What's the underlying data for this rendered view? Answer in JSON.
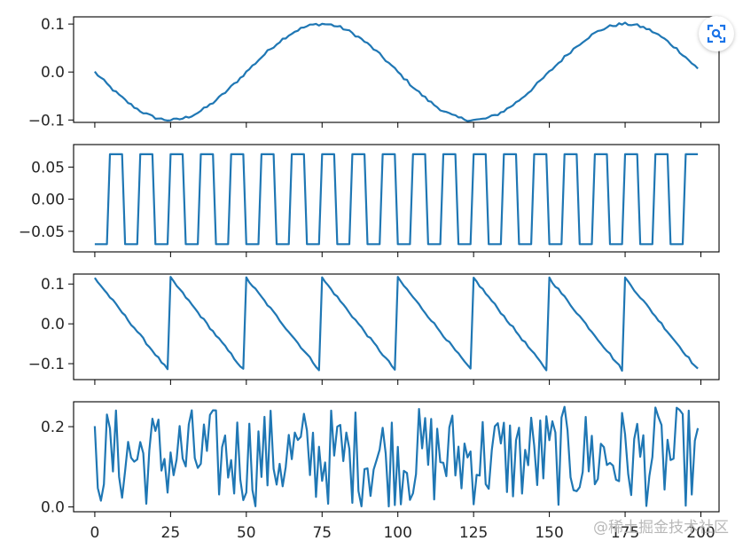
{
  "chart_data": [
    {
      "type": "line",
      "signal": "sine",
      "x": [
        0,
        199
      ],
      "xlim": [
        -7,
        206
      ],
      "ylim": [
        -0.105,
        0.115
      ],
      "xticks": [
        0,
        25,
        50,
        75,
        100,
        125,
        150,
        175,
        200
      ],
      "yticks": [
        0.1,
        0.0,
        -0.1
      ],
      "ytick_labels": [
        "0.1",
        "0.0",
        "−0.1"
      ],
      "amplitude": 0.1,
      "period": 100,
      "series_color": "#1f77b4"
    },
    {
      "type": "line",
      "signal": "square",
      "x": [
        0,
        199
      ],
      "xlim": [
        -7,
        206
      ],
      "ylim": [
        -0.082,
        0.085
      ],
      "xticks": [
        0,
        25,
        50,
        75,
        100,
        125,
        150,
        175,
        200
      ],
      "yticks": [
        0.05,
        0.0,
        -0.05
      ],
      "ytick_labels": [
        "0.05",
        "0.00",
        "−0.05"
      ],
      "amplitude": 0.07,
      "period": 10,
      "series_color": "#1f77b4"
    },
    {
      "type": "line",
      "signal": "sawtooth",
      "x": [
        0,
        199
      ],
      "xlim": [
        -7,
        206
      ],
      "ylim": [
        -0.14,
        0.125
      ],
      "xticks": [
        0,
        25,
        50,
        75,
        100,
        125,
        150,
        175,
        200
      ],
      "yticks": [
        0.1,
        0.0,
        -0.1
      ],
      "ytick_labels": [
        "0.1",
        "0.0",
        "−0.1"
      ],
      "amplitude": 0.115,
      "period": 25,
      "series_color": "#1f77b4"
    },
    {
      "type": "line",
      "signal": "random",
      "x": [
        0,
        199
      ],
      "xlim": [
        -7,
        206
      ],
      "ylim": [
        -0.012,
        0.262
      ],
      "xticks": [
        0,
        25,
        50,
        75,
        100,
        125,
        150,
        175,
        200
      ],
      "xtick_labels": [
        "0",
        "25",
        "50",
        "75",
        "100",
        "125",
        "150",
        "175",
        "200"
      ],
      "yticks": [
        0.2,
        0.0
      ],
      "ytick_labels": [
        "0.2",
        "0.0"
      ],
      "range": [
        0.0,
        0.25
      ],
      "series_color": "#1f77b4"
    }
  ],
  "overlay": {
    "watermark": "@稀土掘金技术社区",
    "lens_icon": "image-search-icon"
  }
}
